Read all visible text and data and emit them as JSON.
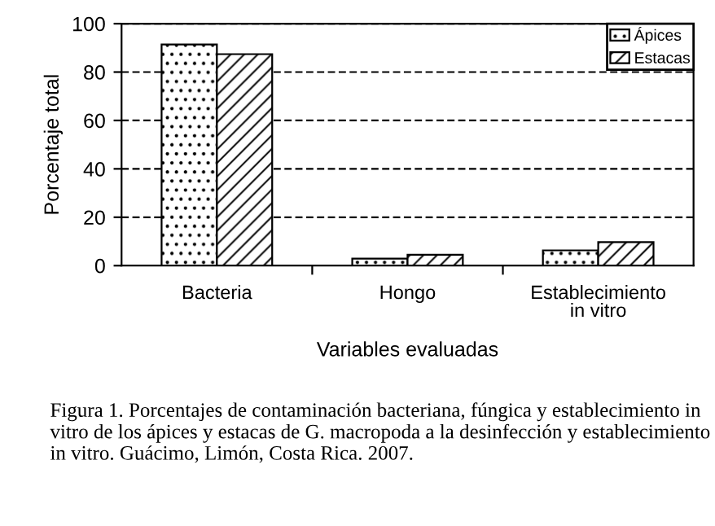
{
  "chart_data": {
    "type": "bar",
    "ylabel": "Porcentaje total",
    "xlabel": "Variables evaluadas",
    "categories": [
      "Bacteria",
      "Hongo",
      "Establecimiento\nin vitro"
    ],
    "series": [
      {
        "name": "Ápices",
        "color": "#000000",
        "values": [
          91.4,
          2.9,
          6.3
        ]
      },
      {
        "name": "Estacas",
        "color": "#000000",
        "values": [
          87.4,
          4.5,
          9.7
        ]
      }
    ],
    "ylim": [
      0,
      100
    ],
    "yticks": [
      0,
      20,
      40,
      60,
      80,
      100
    ],
    "grid": "y",
    "legend": "top right",
    "annotations": [
      "Figura 1. Porcentajes de contaminación bacteriana, fúngica y establecimiento in vitro de los ápices y estacas de G. macropoda a la desinfección y establecimiento in vitro. Guácimo, Limón, Costa Rica. 2007."
    ]
  }
}
